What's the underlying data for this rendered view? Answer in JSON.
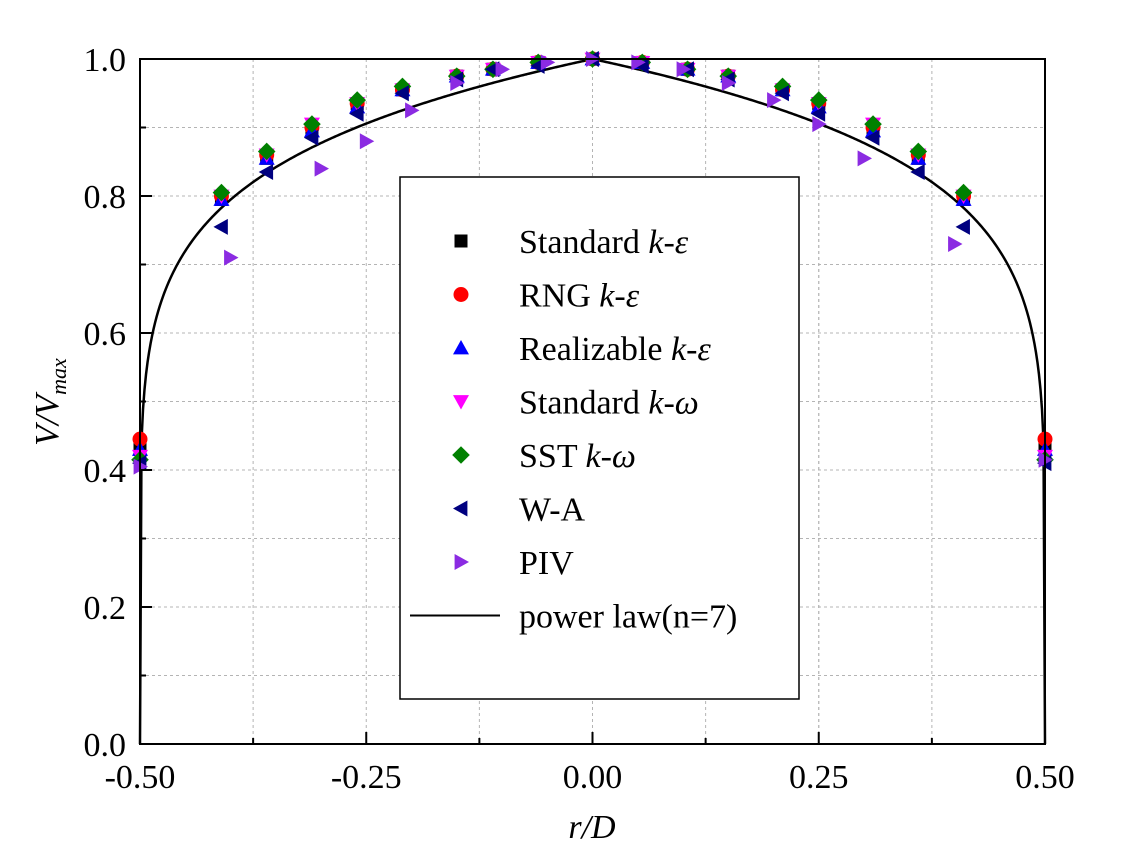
{
  "chart_data": {
    "type": "scatter",
    "title": "",
    "xlabel": "r/D",
    "ylabel_main": "V/V",
    "ylabel_sub": "max",
    "xlim": [
      -0.5,
      0.5
    ],
    "ylim": [
      0.0,
      1.0
    ],
    "x_ticks": [
      -0.5,
      -0.25,
      0.0,
      0.25,
      0.5
    ],
    "x_tick_labels": [
      "-0.50",
      "-0.25",
      "0.00",
      "0.25",
      "0.50"
    ],
    "y_ticks": [
      0.0,
      0.2,
      0.4,
      0.6,
      0.8,
      1.0
    ],
    "y_tick_labels": [
      "0.0",
      "0.2",
      "0.4",
      "0.6",
      "0.8",
      "1.0"
    ],
    "grid": true,
    "legend_position": "center",
    "series": [
      {
        "name": "Standard",
        "name_italic": "k-ε",
        "marker": "square",
        "color": "#000000",
        "x": [
          -0.5,
          -0.41,
          -0.36,
          -0.31,
          -0.26,
          -0.21,
          -0.15,
          -0.11,
          -0.06,
          0.0,
          0.055,
          0.105,
          0.15,
          0.21,
          0.25,
          0.31,
          0.36,
          0.41,
          0.5
        ],
        "y": [
          0.43,
          0.795,
          0.855,
          0.895,
          0.935,
          0.955,
          0.975,
          0.985,
          0.995,
          1.0,
          0.995,
          0.985,
          0.975,
          0.955,
          0.935,
          0.895,
          0.855,
          0.795,
          0.43
        ]
      },
      {
        "name": "RNG",
        "name_italic": "k-ε",
        "marker": "circle",
        "color": "#ff0000",
        "x": [
          -0.5,
          -0.41,
          -0.36,
          -0.31,
          -0.26,
          -0.21,
          -0.15,
          -0.11,
          -0.06,
          0.0,
          0.055,
          0.105,
          0.15,
          0.21,
          0.25,
          0.31,
          0.36,
          0.41,
          0.5
        ],
        "y": [
          0.445,
          0.8,
          0.86,
          0.9,
          0.935,
          0.955,
          0.975,
          0.985,
          0.995,
          1.0,
          0.995,
          0.985,
          0.975,
          0.955,
          0.935,
          0.9,
          0.86,
          0.8,
          0.445
        ]
      },
      {
        "name": "Realizable",
        "name_italic": "k-ε",
        "marker": "triangle-up",
        "color": "#0000ff",
        "x": [
          -0.5,
          -0.41,
          -0.36,
          -0.31,
          -0.26,
          -0.21,
          -0.15,
          -0.11,
          -0.06,
          0.0,
          0.055,
          0.105,
          0.15,
          0.21,
          0.25,
          0.31,
          0.36,
          0.41,
          0.5
        ],
        "y": [
          0.43,
          0.795,
          0.855,
          0.895,
          0.93,
          0.955,
          0.975,
          0.985,
          0.995,
          1.0,
          0.995,
          0.985,
          0.975,
          0.955,
          0.93,
          0.895,
          0.855,
          0.795,
          0.43
        ]
      },
      {
        "name": "Standard",
        "name_italic": "k-ω",
        "marker": "triangle-down",
        "color": "#ff00ff",
        "x": [
          -0.5,
          -0.41,
          -0.36,
          -0.31,
          -0.26,
          -0.21,
          -0.15,
          -0.11,
          -0.06,
          0.0,
          0.055,
          0.105,
          0.15,
          0.21,
          0.25,
          0.31,
          0.36,
          0.41,
          0.5
        ],
        "y": [
          0.42,
          0.8,
          0.86,
          0.905,
          0.935,
          0.955,
          0.975,
          0.985,
          0.995,
          1.0,
          0.995,
          0.985,
          0.975,
          0.955,
          0.935,
          0.905,
          0.86,
          0.8,
          0.42
        ]
      },
      {
        "name": "SST",
        "name_italic": "k-ω",
        "marker": "diamond",
        "color": "#008000",
        "x": [
          -0.5,
          -0.41,
          -0.36,
          -0.31,
          -0.26,
          -0.21,
          -0.15,
          -0.11,
          -0.06,
          0.0,
          0.055,
          0.105,
          0.15,
          0.21,
          0.25,
          0.31,
          0.36,
          0.41,
          0.5
        ],
        "y": [
          0.415,
          0.805,
          0.865,
          0.905,
          0.94,
          0.96,
          0.975,
          0.985,
          0.995,
          1.0,
          0.995,
          0.985,
          0.975,
          0.96,
          0.94,
          0.905,
          0.865,
          0.805,
          0.415
        ]
      },
      {
        "name": "W-A",
        "name_italic": "",
        "marker": "triangle-left",
        "color": "#000080",
        "x": [
          -0.5,
          -0.41,
          -0.36,
          -0.31,
          -0.26,
          -0.21,
          -0.15,
          -0.11,
          -0.06,
          0.0,
          0.055,
          0.105,
          0.15,
          0.21,
          0.25,
          0.31,
          0.36,
          0.41,
          0.5
        ],
        "y": [
          0.41,
          0.755,
          0.835,
          0.885,
          0.92,
          0.95,
          0.97,
          0.985,
          0.99,
          1.0,
          0.99,
          0.985,
          0.97,
          0.95,
          0.92,
          0.885,
          0.835,
          0.755,
          0.41
        ]
      },
      {
        "name": "PIV",
        "name_italic": "",
        "marker": "triangle-right",
        "color": "#8b2be2",
        "x": [
          -0.5,
          -0.4,
          -0.3,
          -0.25,
          -0.2,
          -0.15,
          -0.1,
          -0.05,
          0.0,
          0.05,
          0.1,
          0.15,
          0.2,
          0.25,
          0.3,
          0.4,
          0.5
        ],
        "y": [
          0.405,
          0.71,
          0.84,
          0.88,
          0.925,
          0.965,
          0.985,
          0.995,
          1.0,
          0.995,
          0.985,
          0.965,
          0.94,
          0.905,
          0.855,
          0.73,
          0.415
        ]
      }
    ],
    "reference_line": {
      "name": "power law(n=7)",
      "color": "#000000",
      "n": 7
    }
  }
}
